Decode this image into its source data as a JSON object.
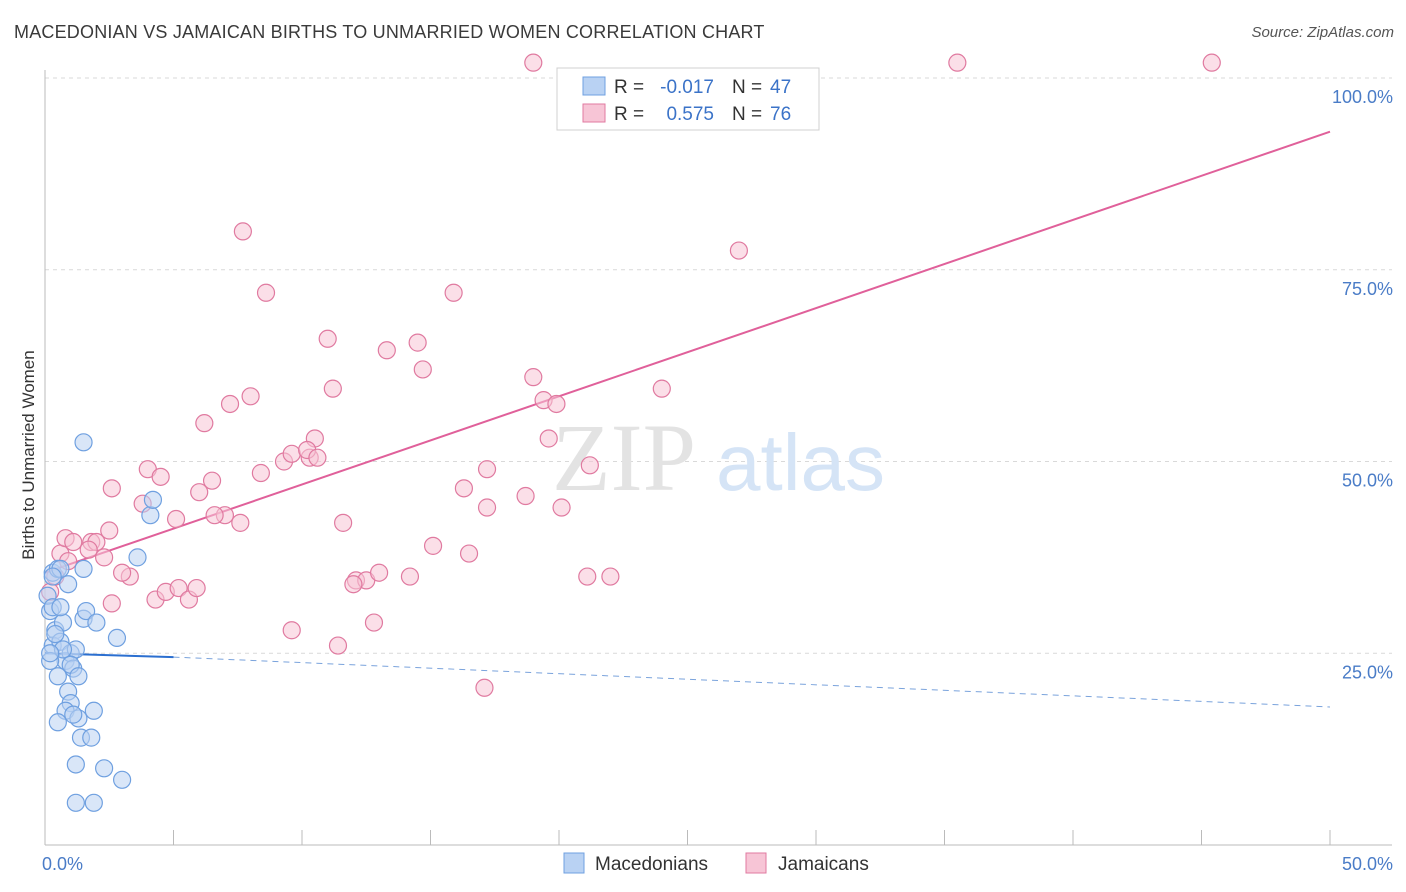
{
  "title": "MACEDONIAN VS JAMAICAN BIRTHS TO UNMARRIED WOMEN CORRELATION CHART",
  "source": "Source: ZipAtlas.com",
  "watermark": {
    "zip": "ZIP",
    "atlas": "atlas"
  },
  "legend": {
    "rows": [
      {
        "r_label": "R =",
        "r_value": "-0.017",
        "n_label": "N =",
        "n_value": "47"
      },
      {
        "r_label": "R =",
        "r_value": "0.575",
        "n_label": "N =",
        "n_value": "76"
      }
    ]
  },
  "bottom_legend": [
    "Macedonians",
    "Jamaicans"
  ],
  "chart_data": {
    "type": "scatter",
    "title": "MACEDONIAN VS JAMAICAN BIRTHS TO UNMARRIED WOMEN CORRELATION CHART",
    "xlabel": "",
    "ylabel": "Births to Unmarried Women",
    "xlim": [
      0,
      50
    ],
    "ylim": [
      0,
      105
    ],
    "x_tick_labels": [
      "0.0%",
      "50.0%"
    ],
    "y_ticks": [
      25,
      50,
      75,
      100
    ],
    "y_tick_labels": [
      "25.0%",
      "50.0%",
      "75.0%",
      "100.0%"
    ],
    "grid": true,
    "series": [
      {
        "name": "Macedonians",
        "color": "#6fa0e0",
        "fill": "#b9d2f3",
        "r": -0.017,
        "n": 47,
        "trend": {
          "x0": 0,
          "y0": 25.0,
          "x1": 5,
          "y1": 24.5,
          "dash_to_x": 50,
          "dash_to_y": 18.0
        },
        "points": [
          [
            0.2,
            30.5
          ],
          [
            0.3,
            35.5
          ],
          [
            0.5,
            36.0
          ],
          [
            0.4,
            28.0
          ],
          [
            0.3,
            26.0
          ],
          [
            0.6,
            26.5
          ],
          [
            0.7,
            29.0
          ],
          [
            0.5,
            22.0
          ],
          [
            0.9,
            34.0
          ],
          [
            0.8,
            24.0
          ],
          [
            1.0,
            25.0
          ],
          [
            1.1,
            23.0
          ],
          [
            1.2,
            25.5
          ],
          [
            0.9,
            20.0
          ],
          [
            1.0,
            18.5
          ],
          [
            0.8,
            17.5
          ],
          [
            1.3,
            16.5
          ],
          [
            1.1,
            17.0
          ],
          [
            1.4,
            14.0
          ],
          [
            1.8,
            14.0
          ],
          [
            0.5,
            16.0
          ],
          [
            1.2,
            10.5
          ],
          [
            1.9,
            17.5
          ],
          [
            2.3,
            10.0
          ],
          [
            1.2,
            5.5
          ],
          [
            1.9,
            5.5
          ],
          [
            3.0,
            8.5
          ],
          [
            1.5,
            29.5
          ],
          [
            1.6,
            30.5
          ],
          [
            2.8,
            27.0
          ],
          [
            1.5,
            36.0
          ],
          [
            2.0,
            29.0
          ],
          [
            1.5,
            52.5
          ],
          [
            4.1,
            43.0
          ],
          [
            4.2,
            45.0
          ],
          [
            3.6,
            37.5
          ],
          [
            0.1,
            32.5
          ],
          [
            0.2,
            24.0
          ],
          [
            0.7,
            25.5
          ],
          [
            1.0,
            23.5
          ],
          [
            0.3,
            31.0
          ],
          [
            0.4,
            27.5
          ],
          [
            1.3,
            22.0
          ],
          [
            0.6,
            31.0
          ],
          [
            0.6,
            36.0
          ],
          [
            0.2,
            25.0
          ],
          [
            0.3,
            35.0
          ]
        ]
      },
      {
        "name": "Jamaicans",
        "color": "#e07aa0",
        "fill": "#f7c5d6",
        "r": 0.575,
        "n": 76,
        "trend": {
          "x0": 0,
          "y0": 35.5,
          "x1": 50,
          "y1": 93.0
        },
        "points": [
          [
            0.2,
            33.0
          ],
          [
            0.4,
            35.0
          ],
          [
            0.6,
            38.0
          ],
          [
            0.8,
            40.0
          ],
          [
            0.9,
            37.0
          ],
          [
            1.1,
            39.5
          ],
          [
            1.8,
            39.5
          ],
          [
            2.0,
            39.5
          ],
          [
            1.7,
            38.5
          ],
          [
            2.5,
            41.0
          ],
          [
            2.3,
            37.5
          ],
          [
            3.3,
            35.0
          ],
          [
            2.6,
            46.5
          ],
          [
            2.6,
            31.5
          ],
          [
            3.8,
            44.5
          ],
          [
            4.3,
            32.0
          ],
          [
            4.0,
            49.0
          ],
          [
            4.5,
            48.0
          ],
          [
            5.1,
            42.5
          ],
          [
            4.7,
            33.0
          ],
          [
            5.2,
            33.5
          ],
          [
            5.6,
            32.0
          ],
          [
            6.0,
            46.0
          ],
          [
            6.2,
            55.0
          ],
          [
            6.5,
            47.5
          ],
          [
            7.0,
            43.0
          ],
          [
            7.2,
            57.5
          ],
          [
            7.6,
            42.0
          ],
          [
            8.0,
            58.5
          ],
          [
            8.4,
            48.5
          ],
          [
            9.3,
            50.0
          ],
          [
            9.6,
            51.0
          ],
          [
            10.3,
            50.5
          ],
          [
            10.5,
            53.0
          ],
          [
            7.7,
            80.0
          ],
          [
            8.6,
            72.0
          ],
          [
            11.2,
            59.5
          ],
          [
            11.0,
            66.0
          ],
          [
            11.6,
            42.0
          ],
          [
            12.1,
            34.5
          ],
          [
            12.5,
            34.5
          ],
          [
            13.0,
            35.5
          ],
          [
            12.8,
            29.0
          ],
          [
            13.3,
            64.5
          ],
          [
            14.2,
            35.0
          ],
          [
            14.5,
            65.5
          ],
          [
            14.7,
            62.0
          ],
          [
            15.1,
            39.0
          ],
          [
            15.9,
            72.0
          ],
          [
            16.3,
            46.5
          ],
          [
            17.2,
            49.0
          ],
          [
            17.2,
            44.0
          ],
          [
            17.1,
            20.5
          ],
          [
            18.7,
            45.5
          ],
          [
            19.0,
            61.0
          ],
          [
            19.4,
            58.0
          ],
          [
            19.6,
            53.0
          ],
          [
            19.9,
            57.5
          ],
          [
            20.1,
            44.0
          ],
          [
            21.2,
            49.5
          ],
          [
            21.1,
            35.0
          ],
          [
            22.0,
            35.0
          ],
          [
            24.0,
            59.5
          ],
          [
            27.0,
            77.5
          ],
          [
            19.0,
            102.0
          ],
          [
            35.5,
            102.0
          ],
          [
            45.4,
            102.0
          ],
          [
            11.4,
            26.0
          ],
          [
            9.6,
            28.0
          ],
          [
            10.2,
            51.5
          ],
          [
            16.5,
            38.0
          ],
          [
            5.9,
            33.5
          ],
          [
            3.0,
            35.5
          ],
          [
            6.6,
            43.0
          ],
          [
            10.6,
            50.5
          ],
          [
            12.0,
            34.0
          ]
        ]
      }
    ]
  }
}
